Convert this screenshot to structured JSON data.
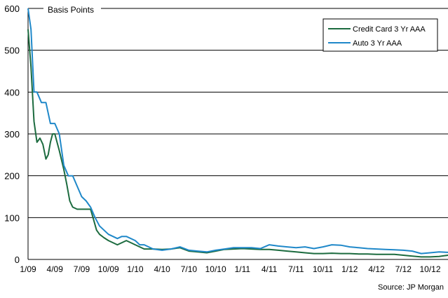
{
  "chart_data": {
    "type": "line",
    "unit_label": "Basis Points",
    "source": "Source: JP Morgan",
    "ylim": [
      0,
      600
    ],
    "y_ticks": [
      "0",
      "100",
      "200",
      "300",
      "400",
      "500",
      "600"
    ],
    "x_ticks": [
      "1/09",
      "4/09",
      "7/09",
      "10/09",
      "1/10",
      "4/10",
      "7/10",
      "10/10",
      "1/11",
      "4/11",
      "7/11",
      "10/11",
      "1/12",
      "4/12",
      "7/12",
      "10/12"
    ],
    "xlim": [
      "2009-01",
      "2012-12"
    ],
    "grid": "horizontal",
    "legend_position": "top-right",
    "series": [
      {
        "name": "Credit Card 3 Yr AAA",
        "color": "#1c6b3f",
        "points": [
          [
            "2009-01",
            550
          ],
          [
            "2009-01",
            460
          ],
          [
            "2009-01",
            330
          ],
          [
            "2009-02",
            280
          ],
          [
            "2009-02",
            290
          ],
          [
            "2009-02",
            275
          ],
          [
            "2009-03",
            240
          ],
          [
            "2009-03",
            250
          ],
          [
            "2009-03",
            280
          ],
          [
            "2009-03",
            300
          ],
          [
            "2009-04",
            300
          ],
          [
            "2009-04",
            260
          ],
          [
            "2009-05",
            215
          ],
          [
            "2009-05",
            180
          ],
          [
            "2009-05",
            140
          ],
          [
            "2009-06",
            125
          ],
          [
            "2009-06",
            120
          ],
          [
            "2009-07",
            120
          ],
          [
            "2009-08",
            120
          ],
          [
            "2009-08",
            95
          ],
          [
            "2009-08",
            70
          ],
          [
            "2009-09",
            60
          ],
          [
            "2009-09",
            52
          ],
          [
            "2009-10",
            45
          ],
          [
            "2009-10",
            40
          ],
          [
            "2009-11",
            35
          ],
          [
            "2009-11",
            40
          ],
          [
            "2009-12",
            45
          ],
          [
            "2009-12",
            40
          ],
          [
            "2010-01",
            35
          ],
          [
            "2010-01",
            30
          ],
          [
            "2010-02",
            25
          ],
          [
            "2010-03",
            25
          ],
          [
            "2010-04",
            24
          ],
          [
            "2010-05",
            25
          ],
          [
            "2010-06",
            28
          ],
          [
            "2010-07",
            20
          ],
          [
            "2010-08",
            18
          ],
          [
            "2010-09",
            16
          ],
          [
            "2010-10",
            20
          ],
          [
            "2010-11",
            24
          ],
          [
            "2010-12",
            25
          ],
          [
            "2011-01",
            26
          ],
          [
            "2011-02",
            25
          ],
          [
            "2011-03",
            24
          ],
          [
            "2011-04",
            24
          ],
          [
            "2011-05",
            22
          ],
          [
            "2011-06",
            20
          ],
          [
            "2011-07",
            18
          ],
          [
            "2011-08",
            16
          ],
          [
            "2011-09",
            14
          ],
          [
            "2011-10",
            14
          ],
          [
            "2011-11",
            15
          ],
          [
            "2011-12",
            14
          ],
          [
            "2012-01",
            14
          ],
          [
            "2012-02",
            13
          ],
          [
            "2012-03",
            13
          ],
          [
            "2012-04",
            12
          ],
          [
            "2012-05",
            12
          ],
          [
            "2012-06",
            12
          ],
          [
            "2012-07",
            10
          ],
          [
            "2012-08",
            8
          ],
          [
            "2012-09",
            6
          ],
          [
            "2012-10",
            6
          ],
          [
            "2012-11",
            7
          ],
          [
            "2012-12",
            10
          ],
          [
            "2012-12",
            10
          ]
        ]
      },
      {
        "name": "Auto 3 Yr AAA",
        "color": "#1f88c9",
        "points": [
          [
            "2009-01",
            600
          ],
          [
            "2009-01",
            550
          ],
          [
            "2009-01",
            400
          ],
          [
            "2009-02",
            400
          ],
          [
            "2009-02",
            375
          ],
          [
            "2009-03",
            375
          ],
          [
            "2009-03",
            325
          ],
          [
            "2009-04",
            325
          ],
          [
            "2009-04",
            300
          ],
          [
            "2009-05",
            225
          ],
          [
            "2009-05",
            200
          ],
          [
            "2009-06",
            200
          ],
          [
            "2009-06",
            175
          ],
          [
            "2009-07",
            150
          ],
          [
            "2009-07",
            140
          ],
          [
            "2009-08",
            125
          ],
          [
            "2009-08",
            100
          ],
          [
            "2009-09",
            80
          ],
          [
            "2009-09",
            70
          ],
          [
            "2009-10",
            60
          ],
          [
            "2009-10",
            55
          ],
          [
            "2009-11",
            50
          ],
          [
            "2009-11",
            55
          ],
          [
            "2009-12",
            55
          ],
          [
            "2010-01",
            45
          ],
          [
            "2010-01",
            35
          ],
          [
            "2010-02",
            35
          ],
          [
            "2010-03",
            25
          ],
          [
            "2010-04",
            22
          ],
          [
            "2010-05",
            25
          ],
          [
            "2010-06",
            30
          ],
          [
            "2010-07",
            22
          ],
          [
            "2010-08",
            20
          ],
          [
            "2010-09",
            18
          ],
          [
            "2010-10",
            22
          ],
          [
            "2010-11",
            25
          ],
          [
            "2010-12",
            28
          ],
          [
            "2011-01",
            28
          ],
          [
            "2011-02",
            28
          ],
          [
            "2011-03",
            26
          ],
          [
            "2011-04",
            35
          ],
          [
            "2011-05",
            32
          ],
          [
            "2011-06",
            30
          ],
          [
            "2011-07",
            28
          ],
          [
            "2011-08",
            30
          ],
          [
            "2011-09",
            26
          ],
          [
            "2011-10",
            30
          ],
          [
            "2011-11",
            35
          ],
          [
            "2011-12",
            34
          ],
          [
            "2012-01",
            30
          ],
          [
            "2012-02",
            28
          ],
          [
            "2012-03",
            26
          ],
          [
            "2012-04",
            25
          ],
          [
            "2012-05",
            24
          ],
          [
            "2012-06",
            23
          ],
          [
            "2012-07",
            22
          ],
          [
            "2012-08",
            20
          ],
          [
            "2012-09",
            14
          ],
          [
            "2012-10",
            16
          ],
          [
            "2012-11",
            18
          ],
          [
            "2012-12",
            17
          ],
          [
            "2012-12",
            16
          ]
        ]
      }
    ]
  }
}
